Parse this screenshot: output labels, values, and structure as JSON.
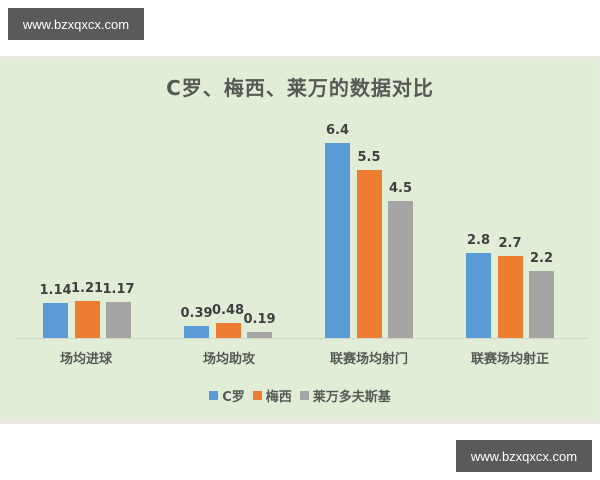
{
  "watermarks": {
    "top": "www.bzxqxcx.com",
    "bottom": "www.bzxqxcx.com"
  },
  "chart_data": {
    "type": "bar",
    "title": "C罗、梅西、莱万的数据对比",
    "categories": [
      "场均进球",
      "场均助攻",
      "联赛场均射门",
      "联赛场均射正"
    ],
    "series": [
      {
        "name": "C罗",
        "color": "#5b9bd5",
        "values": [
          1.14,
          0.39,
          6.4,
          2.8
        ]
      },
      {
        "name": "梅西",
        "color": "#ed7d31",
        "values": [
          1.21,
          0.48,
          5.5,
          2.7
        ]
      },
      {
        "name": "莱万多夫斯基",
        "color": "#a5a5a5",
        "values": [
          1.17,
          0.19,
          4.5,
          2.2
        ]
      }
    ],
    "value_labels": [
      [
        "1.14",
        "0.39",
        "6.4",
        "2.8"
      ],
      [
        "1.21",
        "0.48",
        "5.5",
        "2.7"
      ],
      [
        "1.17",
        "0.19",
        "4.5",
        "2.2"
      ]
    ],
    "xlabel": "",
    "ylabel": "",
    "ylim": [
      0,
      7
    ],
    "grid": false,
    "legend_position": "bottom"
  }
}
